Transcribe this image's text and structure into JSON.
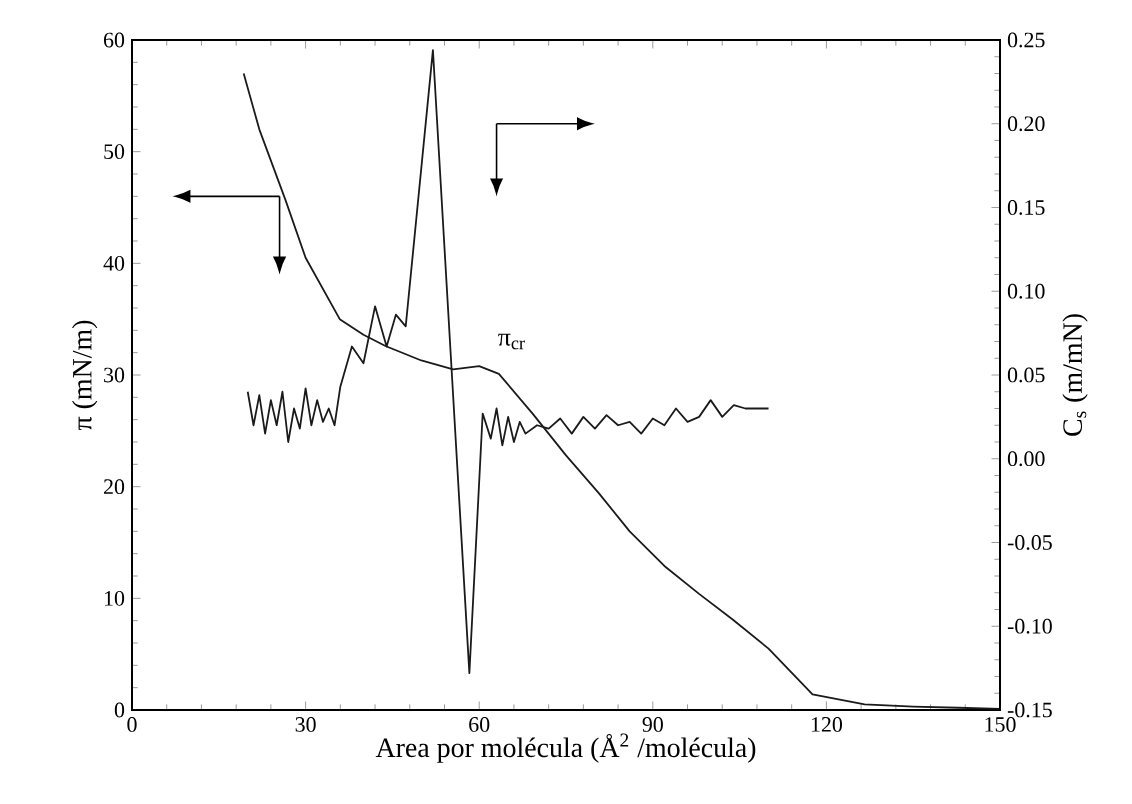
{
  "chart_data": {
    "type": "line",
    "xlabel": "Area por molécula (Å$^{2}$ /molécula)",
    "ylabel": "π (mN/m)",
    "y2label": "C$_{s}$ (m/mN)",
    "xlim": [
      0,
      150
    ],
    "xticks": [
      0,
      30,
      60,
      90,
      120,
      150
    ],
    "ylim": [
      0,
      60
    ],
    "yticks": [
      0,
      10,
      20,
      30,
      40,
      50,
      60
    ],
    "y2lim": [
      -0.15,
      0.25
    ],
    "y2ticks": [
      {
        "value": -0.15,
        "label": "-0.15"
      },
      {
        "value": -0.1,
        "label": "-0.10"
      },
      {
        "value": -0.05,
        "label": "-0.05"
      },
      {
        "value": 0,
        "label": "0.00"
      },
      {
        "value": 0.05,
        "label": "0.05"
      },
      {
        "value": 0.1,
        "label": "0.10"
      },
      {
        "value": 0.15,
        "label": "0.15"
      },
      {
        "value": 0.2,
        "label": "0.20"
      },
      {
        "value": 0.25,
        "label": "0.25"
      }
    ],
    "series": [
      {
        "color": "#1a1a1a",
        "axis": "y",
        "x": [
          19.3,
          22,
          26.5,
          30,
          35.9,
          40,
          43.8,
          50,
          55.5,
          60,
          63.4,
          69.3,
          75,
          80.7,
          86,
          92,
          98,
          103.8,
          110,
          117.6,
          126.6,
          135,
          142.8,
          150
        ],
        "values": [
          57,
          52,
          45.7,
          40.5,
          35,
          33.6,
          32.6,
          31.3,
          30.5,
          30.8,
          30.1,
          26.5,
          22.8,
          19.4,
          16,
          12.9,
          10.4,
          8.1,
          5.5,
          1.4,
          0.5,
          0.3,
          0.2,
          0.1
        ]
      },
      {
        "color": "#1a1a1a",
        "axis": "y2",
        "x": [
          20,
          21,
          22,
          23,
          24,
          25,
          26,
          27,
          28,
          29,
          30,
          31,
          32,
          33,
          34,
          35,
          36,
          38,
          40,
          42,
          44,
          45.6,
          47.3,
          52,
          58.3,
          60.6,
          62,
          63,
          64,
          65,
          66,
          67,
          68,
          70,
          72,
          74,
          76,
          78,
          80,
          82,
          84,
          86,
          88,
          90,
          92,
          94,
          96,
          98,
          100,
          102,
          104,
          106,
          110
        ],
        "values": [
          0.04,
          0.02,
          0.038,
          0.015,
          0.035,
          0.02,
          0.04,
          0.01,
          0.03,
          0.018,
          0.042,
          0.02,
          0.035,
          0.022,
          0.03,
          0.02,
          0.043,
          0.067,
          0.057,
          0.091,
          0.067,
          0.086,
          0.079,
          0.244,
          -0.128,
          0.027,
          0.012,
          0.03,
          0.008,
          0.025,
          0.01,
          0.022,
          0.015,
          0.02,
          0.018,
          0.024,
          0.015,
          0.025,
          0.018,
          0.026,
          0.02,
          0.022,
          0.015,
          0.024,
          0.02,
          0.03,
          0.022,
          0.025,
          0.035,
          0.025,
          0.032,
          0.03,
          0.03
        ]
      }
    ],
    "annotations": [
      "π$_{cr}$"
    ],
    "marker": "none",
    "line_style": "solid"
  }
}
